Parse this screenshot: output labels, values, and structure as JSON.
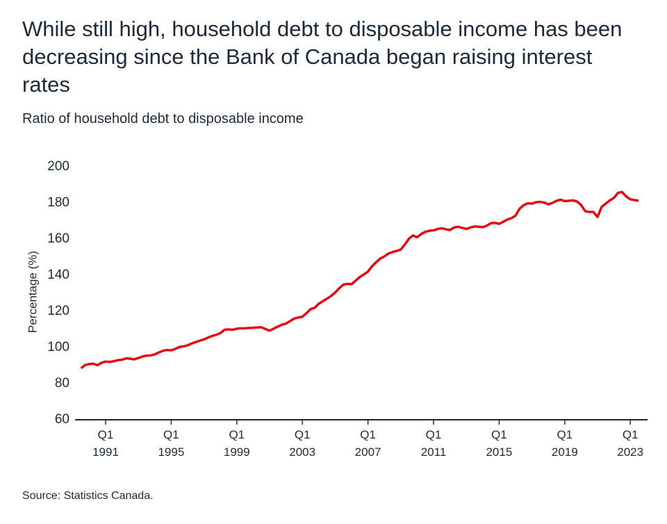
{
  "chart_data": {
    "type": "line",
    "title": "While still high, household debt to disposable income has been decreasing since the Bank of Canada began raising interest rates",
    "subtitle": "Ratio of household debt to disposable income",
    "y_label": "Percentage (%)",
    "source": "Source: Statistics Canada.",
    "categories": [
      null,
      null,
      null,
      null,
      null,
      null,
      "Q1\n1991",
      null,
      null,
      null,
      null,
      null,
      null,
      null,
      null,
      null,
      null,
      null,
      null,
      null,
      null,
      null,
      "Q1\n1995",
      null,
      null,
      null,
      null,
      null,
      null,
      null,
      null,
      null,
      null,
      null,
      null,
      null,
      null,
      null,
      "Q1\n1999",
      null,
      null,
      null,
      null,
      null,
      null,
      null,
      null,
      null,
      null,
      null,
      null,
      null,
      null,
      null,
      "Q1\n2003",
      null,
      null,
      null,
      null,
      null,
      null,
      null,
      null,
      null,
      null,
      null,
      null,
      null,
      null,
      null,
      "Q1\n2007",
      null,
      null,
      null,
      null,
      null,
      null,
      null,
      null,
      null,
      null,
      null,
      null,
      null,
      null,
      null,
      "Q1\n2011",
      null,
      null,
      null,
      null,
      null,
      null,
      null,
      null,
      null,
      null,
      null,
      null,
      null,
      null,
      null,
      "Q1\n2015",
      null,
      null,
      null,
      null,
      null,
      null,
      null,
      null,
      null,
      null,
      null,
      null,
      null,
      null,
      null,
      "Q1\n2019",
      null,
      null,
      null,
      null,
      null,
      null,
      null,
      null,
      null,
      null,
      null,
      null,
      null,
      null,
      null,
      "Q1\n2023",
      null,
      null
    ],
    "series": [
      {
        "name": "Ratio of household debt to disposable income",
        "color": "#e50914",
        "values": [
          88.5,
          90.3,
          90.8,
          91,
          90.2,
          91.5,
          92.2,
          92,
          92.4,
          93,
          93.2,
          94,
          93.8,
          93.4,
          94.2,
          95,
          95.5,
          95.6,
          96.2,
          97.2,
          98.2,
          98.6,
          98.4,
          99.2,
          100.3,
          100.6,
          101.2,
          102.2,
          103,
          103.8,
          104.5,
          105.5,
          106.4,
          107,
          108,
          109.8,
          110,
          109.8,
          110.4,
          110.6,
          110.6,
          110.8,
          110.9,
          111.1,
          111.2,
          110.2,
          109.3,
          110.4,
          111.6,
          112.6,
          113.2,
          114.6,
          116,
          116.6,
          117,
          119,
          121.2,
          122,
          124.2,
          125.6,
          127,
          128.5,
          130.4,
          132.8,
          134.8,
          135.2,
          135,
          137,
          139,
          140.4,
          142,
          145,
          147.2,
          149.2,
          150.4,
          152,
          152.8,
          153.4,
          154.2,
          157,
          160.2,
          162,
          161,
          162.8,
          164,
          164.6,
          164.8,
          165.6,
          166,
          165.4,
          165,
          166.4,
          166.8,
          166.2,
          165.6,
          166.4,
          167,
          166.8,
          166.6,
          167.4,
          168.8,
          169,
          168.4,
          169.6,
          170.8,
          171.6,
          173,
          176.8,
          178.8,
          179.8,
          179.6,
          180.4,
          180.6,
          180.2,
          179.2,
          180,
          181.2,
          181.8,
          181,
          181.2,
          181.4,
          180.8,
          178.8,
          175.4,
          175,
          175,
          172.2,
          177.8,
          179.6,
          181.4,
          182.8,
          185.6,
          186,
          183.6,
          182,
          181.6,
          181.2
        ]
      }
    ],
    "ylim": [
      60,
      200
    ],
    "yticks": [
      60,
      80,
      100,
      120,
      140,
      160,
      180,
      200
    ],
    "grid": false
  }
}
